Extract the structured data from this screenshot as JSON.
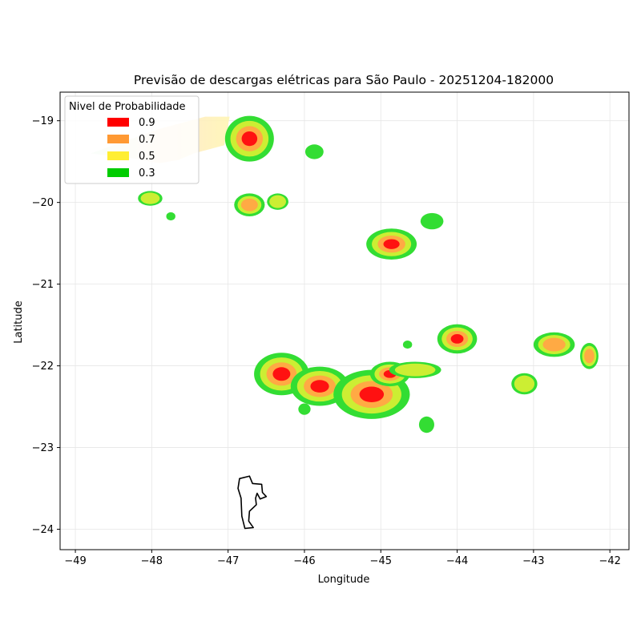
{
  "chart_data": {
    "type": "heatmap",
    "title": "Previsão de descargas elétricas para São Paulo - 20251204-182000",
    "xlabel": "Longitude",
    "ylabel": "Latitude",
    "xlim": [
      -49.2,
      -41.75
    ],
    "ylim": [
      -24.25,
      -18.65
    ],
    "xticks": [
      -49,
      -48,
      -47,
      -46,
      -45,
      -44,
      -43,
      -42
    ],
    "yticks": [
      -19,
      -20,
      -21,
      -22,
      -23,
      -24
    ],
    "xtick_labels": [
      "−49",
      "−48",
      "−47",
      "−46",
      "−45",
      "−44",
      "−43",
      "−42"
    ],
    "ytick_labels": [
      "−19",
      "−20",
      "−21",
      "−22",
      "−23",
      "−24"
    ],
    "grid": true,
    "legend": {
      "title": "Nivel de Probabilidade",
      "position": "top-left",
      "entries": [
        {
          "label": "0.9",
          "color": "#ff0000"
        },
        {
          "label": "0.7",
          "color": "#ff9933"
        },
        {
          "label": "0.5",
          "color": "#ffee33"
        },
        {
          "label": "0.3",
          "color": "#00cc00"
        }
      ]
    },
    "level_colors": {
      "0.3": "#33dd33",
      "0.5": "#ccee33",
      "0.7": "#ffaa44",
      "0.9": "#ff1111"
    },
    "cells": [
      {
        "lon": -46.72,
        "lat": -19.22,
        "rx": 0.32,
        "ry": 0.28,
        "level": 0.9
      },
      {
        "lon": -45.87,
        "lat": -19.38,
        "rx": 0.12,
        "ry": 0.09,
        "level": 0.3
      },
      {
        "lon": -48.02,
        "lat": -19.95,
        "rx": 0.16,
        "ry": 0.09,
        "level": 0.5
      },
      {
        "lon": -47.75,
        "lat": -20.17,
        "rx": 0.06,
        "ry": 0.05,
        "level": 0.3
      },
      {
        "lon": -46.72,
        "lat": -20.03,
        "rx": 0.2,
        "ry": 0.14,
        "level": 0.7
      },
      {
        "lon": -46.35,
        "lat": -19.99,
        "rx": 0.14,
        "ry": 0.1,
        "level": 0.5
      },
      {
        "lon": -44.33,
        "lat": -20.23,
        "rx": 0.15,
        "ry": 0.1,
        "level": 0.3
      },
      {
        "lon": -44.86,
        "lat": -20.51,
        "rx": 0.33,
        "ry": 0.19,
        "level": 0.9
      },
      {
        "lon": -44.0,
        "lat": -21.67,
        "rx": 0.26,
        "ry": 0.18,
        "level": 0.9
      },
      {
        "lon": -44.65,
        "lat": -21.74,
        "rx": 0.06,
        "ry": 0.05,
        "level": 0.3
      },
      {
        "lon": -42.73,
        "lat": -21.74,
        "rx": 0.27,
        "ry": 0.15,
        "level": 0.7
      },
      {
        "lon": -42.27,
        "lat": -21.88,
        "rx": 0.12,
        "ry": 0.16,
        "level": 0.7
      },
      {
        "lon": -43.12,
        "lat": -22.22,
        "rx": 0.17,
        "ry": 0.13,
        "level": 0.5
      },
      {
        "lon": -46.3,
        "lat": -22.1,
        "rx": 0.36,
        "ry": 0.26,
        "level": 0.9
      },
      {
        "lon": -45.8,
        "lat": -22.25,
        "rx": 0.38,
        "ry": 0.24,
        "level": 0.9
      },
      {
        "lon": -45.12,
        "lat": -22.35,
        "rx": 0.5,
        "ry": 0.3,
        "level": 0.9
      },
      {
        "lon": -44.88,
        "lat": -22.1,
        "rx": 0.26,
        "ry": 0.15,
        "level": 0.9
      },
      {
        "lon": -44.55,
        "lat": -22.05,
        "rx": 0.34,
        "ry": 0.1,
        "level": 0.5
      },
      {
        "lon": -46.0,
        "lat": -22.53,
        "rx": 0.08,
        "ry": 0.07,
        "level": 0.3
      },
      {
        "lon": -44.4,
        "lat": -22.72,
        "rx": 0.1,
        "ry": 0.1,
        "level": 0.3
      }
    ],
    "faded_area": {
      "points": [
        [
          -48.8,
          -19.4
        ],
        [
          -47.9,
          -19.1
        ],
        [
          -47.3,
          -18.95
        ],
        [
          -46.98,
          -18.95
        ],
        [
          -47.05,
          -19.3
        ],
        [
          -47.45,
          -19.4
        ],
        [
          -47.65,
          -19.48
        ],
        [
          -47.9,
          -19.52
        ],
        [
          -48.3,
          -19.45
        ]
      ],
      "colors": [
        "#d6f5d6",
        "#ffe6cc",
        "#fff5b3"
      ]
    },
    "outline": {
      "color": "#000000",
      "points": [
        [
          -46.85,
          -23.38
        ],
        [
          -46.72,
          -23.35
        ],
        [
          -46.68,
          -23.44
        ],
        [
          -46.56,
          -23.45
        ],
        [
          -46.55,
          -23.55
        ],
        [
          -46.5,
          -23.6
        ],
        [
          -46.58,
          -23.63
        ],
        [
          -46.62,
          -23.56
        ],
        [
          -46.64,
          -23.62
        ],
        [
          -46.63,
          -23.7
        ],
        [
          -46.72,
          -23.78
        ],
        [
          -46.73,
          -23.9
        ],
        [
          -46.67,
          -23.98
        ],
        [
          -46.78,
          -23.99
        ],
        [
          -46.82,
          -23.84
        ],
        [
          -46.83,
          -23.62
        ],
        [
          -46.87,
          -23.5
        ]
      ]
    }
  }
}
